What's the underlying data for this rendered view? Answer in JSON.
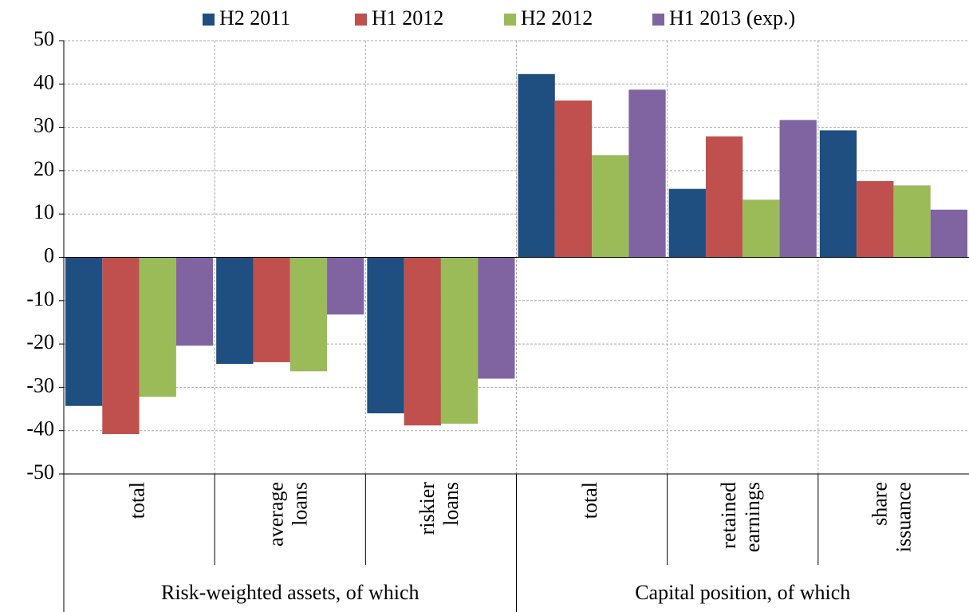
{
  "chart_data": {
    "type": "bar",
    "groups": [
      {
        "label": "Risk-weighted assets, of which",
        "categories": [
          [
            "total"
          ],
          [
            "average",
            "loans"
          ],
          [
            "riskier",
            "loans"
          ]
        ]
      },
      {
        "label": "Capital position, of which",
        "categories": [
          [
            "total"
          ],
          [
            "retained",
            "earnings"
          ],
          [
            "share",
            "issuance"
          ]
        ]
      }
    ],
    "series": [
      {
        "name": "H2 2011",
        "color": "#1f4e80",
        "values": [
          -34.3,
          -24.6,
          -36,
          42.3,
          15.8,
          29.3
        ]
      },
      {
        "name": "H1 2012",
        "color": "#c0504d",
        "values": [
          -40.8,
          -24.2,
          -38.8,
          36.2,
          27.9,
          17.6
        ]
      },
      {
        "name": "H2 2012",
        "color": "#9bbb59",
        "values": [
          -32.2,
          -26.3,
          -38.4,
          23.6,
          13.3,
          16.6
        ]
      },
      {
        "name": "H1 2013 (exp.)",
        "color": "#8064a2",
        "values": [
          -20.4,
          -13.2,
          -28,
          38.7,
          31.7,
          11
        ]
      }
    ],
    "ylim": [
      -50,
      50
    ],
    "yticks": [
      -50,
      -40,
      -30,
      -20,
      -10,
      0,
      10,
      20,
      30,
      40,
      50
    ],
    "grid": true
  }
}
